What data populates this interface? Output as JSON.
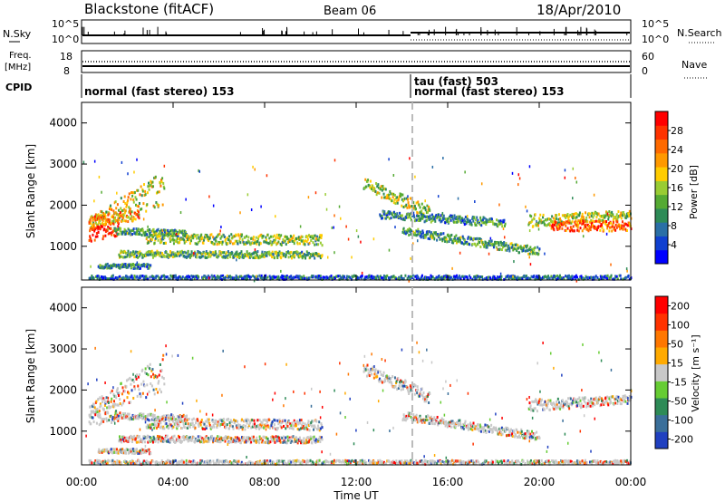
{
  "header": {
    "title": "Blackstone (fitACF)",
    "beam": "Beam 06",
    "date": "18/Apr/2010"
  },
  "summary": {
    "nsky_label": "N.Sky",
    "nsearch_label": "N.Search",
    "freq_label_top": "Freq.",
    "freq_label_unit": "[MHz]",
    "nave_label": "Nave",
    "cpid_label": "CPID",
    "nsky_ticks": [
      "10^5",
      "10^0"
    ],
    "nsearch_ticks": [
      "10^5",
      "10^0"
    ],
    "freq_ticks": [
      "18",
      "8"
    ],
    "nave_ticks": [
      "60",
      "0"
    ],
    "cpid_segments": [
      {
        "text": "normal (fast stereo) 153",
        "start_hour": 0
      },
      {
        "text": "tau (fast) 503",
        "start_hour": 14.5
      },
      {
        "text": "normal (fast stereo) 153",
        "start_hour": 14.5
      }
    ],
    "freq_line_mhz": 10.5,
    "nave_line": 27
  },
  "chart_data": [
    {
      "type": "heatmap",
      "ylabel": "Slant Range [km]",
      "ylim": [
        180,
        4500
      ],
      "yticks": [
        1000,
        2000,
        3000,
        4000
      ],
      "x_hours": [
        0,
        4,
        8,
        12,
        16,
        20,
        24
      ],
      "colorbar": {
        "label": "Power [dB]",
        "range": [
          0,
          32
        ],
        "ticks": [
          "4",
          "8",
          "12",
          "16",
          "20",
          "24",
          "28"
        ],
        "colors": [
          "#0000ff",
          "#1040d0",
          "#2a6fa6",
          "#2e8b57",
          "#55aa33",
          "#99cc33",
          "#ffcc00",
          "#ff9900",
          "#ff6a00",
          "#ff3300",
          "#ff0000"
        ]
      },
      "bands": [
        {
          "t0": 0.3,
          "t1": 3.6,
          "r0a": 1400,
          "r1a": 1700,
          "r0b": 2000,
          "r1b": 2900,
          "level": 0.55
        },
        {
          "t0": 0.3,
          "t1": 1.6,
          "r0a": 1150,
          "r1a": 1500,
          "r0b": 1250,
          "r1b": 1700,
          "level": 0.95
        },
        {
          "t0": 0.3,
          "t1": 2.5,
          "r0a": 1500,
          "r1a": 1750,
          "r0b": 1650,
          "r1b": 1950,
          "level": 0.7
        },
        {
          "t0": 1.4,
          "t1": 4.6,
          "r0a": 1330,
          "r1a": 1480,
          "r0b": 1260,
          "r1b": 1420,
          "level": 0.35
        },
        {
          "t0": 2.8,
          "t1": 10.5,
          "r0a": 1100,
          "r1a": 1350,
          "r0b": 1050,
          "r1b": 1300,
          "level": 0.45
        },
        {
          "t0": 1.6,
          "t1": 10.5,
          "r0a": 760,
          "r1a": 920,
          "r0b": 740,
          "r1b": 900,
          "level": 0.4
        },
        {
          "t0": 0.7,
          "t1": 3.0,
          "r0a": 500,
          "r1a": 600,
          "r0b": 480,
          "r1b": 600,
          "level": 0.3
        },
        {
          "t0": 12.3,
          "t1": 15.2,
          "r0a": 2400,
          "r1a": 2700,
          "r0b": 1700,
          "r1b": 2000,
          "level": 0.5
        },
        {
          "t0": 14.0,
          "t1": 20.0,
          "r0a": 1300,
          "r1a": 1500,
          "r0b": 800,
          "r1b": 1000,
          "level": 0.35
        },
        {
          "t0": 13.0,
          "t1": 18.5,
          "r0a": 1700,
          "r1a": 1900,
          "r0b": 1500,
          "r1b": 1700,
          "level": 0.3
        },
        {
          "t0": 19.5,
          "t1": 24.0,
          "r0a": 1500,
          "r1a": 1800,
          "r0b": 1700,
          "r1b": 1900,
          "level": 0.5
        },
        {
          "t0": 20.5,
          "t1": 24.0,
          "r0a": 1400,
          "r1a": 1650,
          "r0b": 1400,
          "r1b": 1650,
          "level": 0.8
        },
        {
          "t0": 0.3,
          "t1": 24.0,
          "r0a": 180,
          "r1a": 320,
          "r0b": 180,
          "r1b": 320,
          "level": 0.2
        }
      ]
    },
    {
      "type": "heatmap",
      "ylabel": "Slant Range [km]",
      "xlabel": "Time UT",
      "ylim": [
        180,
        4500
      ],
      "yticks": [
        1000,
        2000,
        3000,
        4000
      ],
      "x_hours": [
        0,
        4,
        8,
        12,
        16,
        20,
        24
      ],
      "x_tick_labels": [
        "00:00",
        "04:00",
        "08:00",
        "12:00",
        "16:00",
        "20:00",
        "00:00"
      ],
      "colorbar": {
        "label": "Velocity [m s⁻¹]",
        "ticks": [
          "200",
          "100",
          "50",
          "15",
          "-15",
          "-50",
          "-100",
          "-200"
        ],
        "colors": [
          "#2040c0",
          "#3a6f9a",
          "#2e8b57",
          "#66cc33",
          "#c8c8c8",
          "#ffaa00",
          "#ff7700",
          "#ff3300",
          "#ff0000"
        ]
      },
      "ground_color": "#c8c8c8",
      "bands": [
        {
          "t0": 0.3,
          "t1": 3.6,
          "r0a": 1400,
          "r1a": 1700,
          "r0b": 2000,
          "r1b": 2900,
          "level": 0.55
        },
        {
          "t0": 0.3,
          "t1": 1.6,
          "r0a": 1150,
          "r1a": 1500,
          "r0b": 1250,
          "r1b": 1700,
          "level": 0.5
        },
        {
          "t0": 1.4,
          "t1": 4.6,
          "r0a": 1330,
          "r1a": 1480,
          "r0b": 1260,
          "r1b": 1420,
          "level": 0.5
        },
        {
          "t0": 2.8,
          "t1": 10.5,
          "r0a": 1100,
          "r1a": 1350,
          "r0b": 1050,
          "r1b": 1300,
          "level": 0.5
        },
        {
          "t0": 1.6,
          "t1": 10.5,
          "r0a": 760,
          "r1a": 920,
          "r0b": 740,
          "r1b": 900,
          "level": 0.5
        },
        {
          "t0": 0.7,
          "t1": 3.0,
          "r0a": 500,
          "r1a": 600,
          "r0b": 480,
          "r1b": 600,
          "level": 0.6
        },
        {
          "t0": 12.3,
          "t1": 15.2,
          "r0a": 2400,
          "r1a": 2700,
          "r0b": 1700,
          "r1b": 2000,
          "level": 0.5
        },
        {
          "t0": 14.0,
          "t1": 20.0,
          "r0a": 1300,
          "r1a": 1500,
          "r0b": 800,
          "r1b": 1000,
          "level": 0.5
        },
        {
          "t0": 19.5,
          "t1": 24.0,
          "r0a": 1500,
          "r1a": 1800,
          "r0b": 1700,
          "r1b": 1900,
          "level": 0.5
        },
        {
          "t0": 0.3,
          "t1": 24.0,
          "r0a": 180,
          "r1a": 320,
          "r0b": 180,
          "r1b": 320,
          "level": 0.3
        }
      ]
    }
  ]
}
